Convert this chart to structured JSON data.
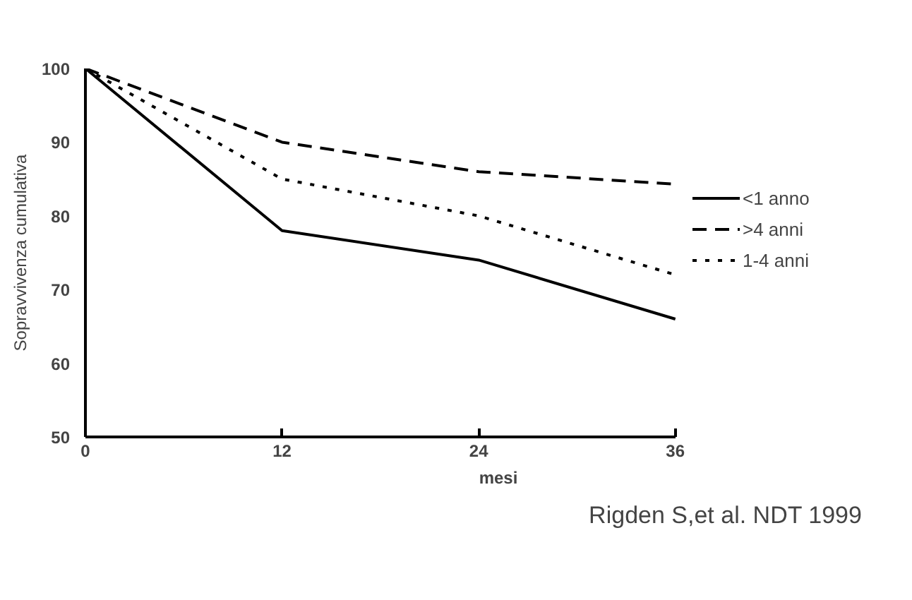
{
  "chart_data": {
    "type": "line",
    "xlabel": "mesi",
    "ylabel": "Sopravvivenza cumulativa",
    "x": [
      0,
      12,
      24,
      36
    ],
    "series": [
      {
        "name": "<1 anno",
        "color": "#000000",
        "line_style": "solid",
        "values": [
          100,
          78,
          74,
          66
        ]
      },
      {
        "name": ">4 anni",
        "color": "#000000",
        "line_style": "dashed",
        "values": [
          100,
          90,
          86,
          84.3
        ]
      },
      {
        "name": "1-4 anni",
        "color": "#000000",
        "line_style": "dotted",
        "values": [
          100,
          85,
          80,
          72
        ]
      }
    ],
    "xlim": [
      0,
      36
    ],
    "xticks": [
      0,
      12,
      24,
      36
    ],
    "ylim": [
      50,
      100
    ],
    "yticks": [
      50,
      60,
      70,
      80,
      90,
      100
    ],
    "grid": false,
    "legend": "right",
    "marker": "none",
    "annotations": [
      "Rigden S,et al. NDT  1999"
    ]
  }
}
